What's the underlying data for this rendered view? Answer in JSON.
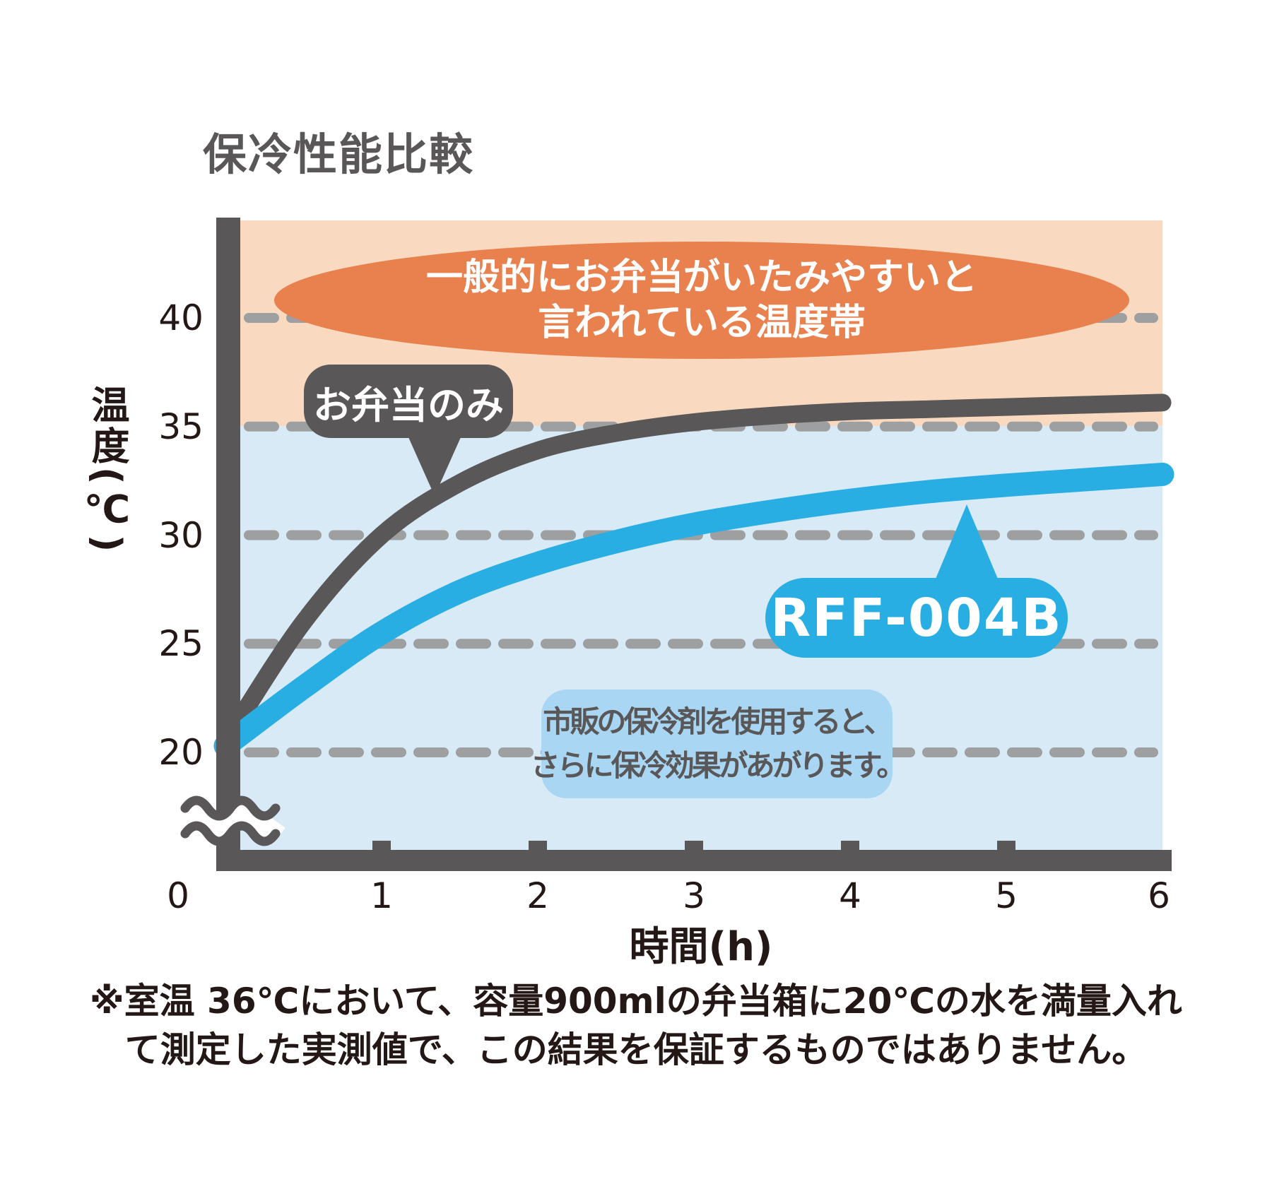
{
  "title": "保冷性能比較",
  "y_axis": {
    "label": "温度(℃)",
    "ticks": [
      "40",
      "35",
      "30",
      "25",
      "20"
    ]
  },
  "x_axis": {
    "label": "時間(h)",
    "ticks": [
      "0",
      "1",
      "2",
      "3",
      "4",
      "5",
      "6"
    ]
  },
  "annotations": {
    "danger_zone_line1": "一般的にお弁当がいたみやすいと",
    "danger_zone_line2": "言われている温度帯",
    "tip_line1": "市販の保冷剤を使用すると、",
    "tip_line2": "さらに保冷効果があがります。"
  },
  "note": {
    "line1": "※室温 36℃において、容量900mlの弁当箱に20℃の水を満量入れ",
    "line2": "て測定した実測値で、この結果を保証するものではありません。"
  },
  "colors": {
    "dark_gray": "#595757",
    "accent_blue": "#29AEE3",
    "band_orange": "#F9DAC0",
    "band_blue": "#D8EAF6",
    "ellipse_orange": "#E8814E",
    "tip_box_blue": "#A9D6F2",
    "dash_gray": "#9E9FA0",
    "text_black": "#231815"
  },
  "chart_data": {
    "type": "line",
    "title": "保冷性能比較",
    "xlabel": "時間(h)",
    "ylabel": "温度(℃)",
    "xlim": [
      0,
      6
    ],
    "ylim": [
      17,
      44
    ],
    "yticks": [
      40,
      35,
      30,
      25,
      20
    ],
    "xticks": [
      0,
      1,
      2,
      3,
      4,
      5,
      6
    ],
    "grid": "dashed-horizontal",
    "y_axis_break_below": 20,
    "danger_zone_above": 35,
    "x": [
      0,
      0.5,
      1,
      1.5,
      2,
      2.5,
      3,
      3.5,
      4,
      4.5,
      5,
      5.5,
      6
    ],
    "series": [
      {
        "name": "お弁当のみ",
        "color": "#595757",
        "values": [
          20.5,
          26.0,
          30.0,
          32.4,
          33.9,
          34.7,
          35.2,
          35.5,
          35.7,
          35.8,
          35.9,
          36.0,
          36.1
        ]
      },
      {
        "name": "RFF-004B",
        "color": "#29AEE3",
        "values": [
          20.3,
          23.0,
          25.5,
          27.4,
          28.7,
          29.7,
          30.5,
          31.1,
          31.6,
          32.0,
          32.3,
          32.55,
          32.8
        ]
      }
    ]
  }
}
